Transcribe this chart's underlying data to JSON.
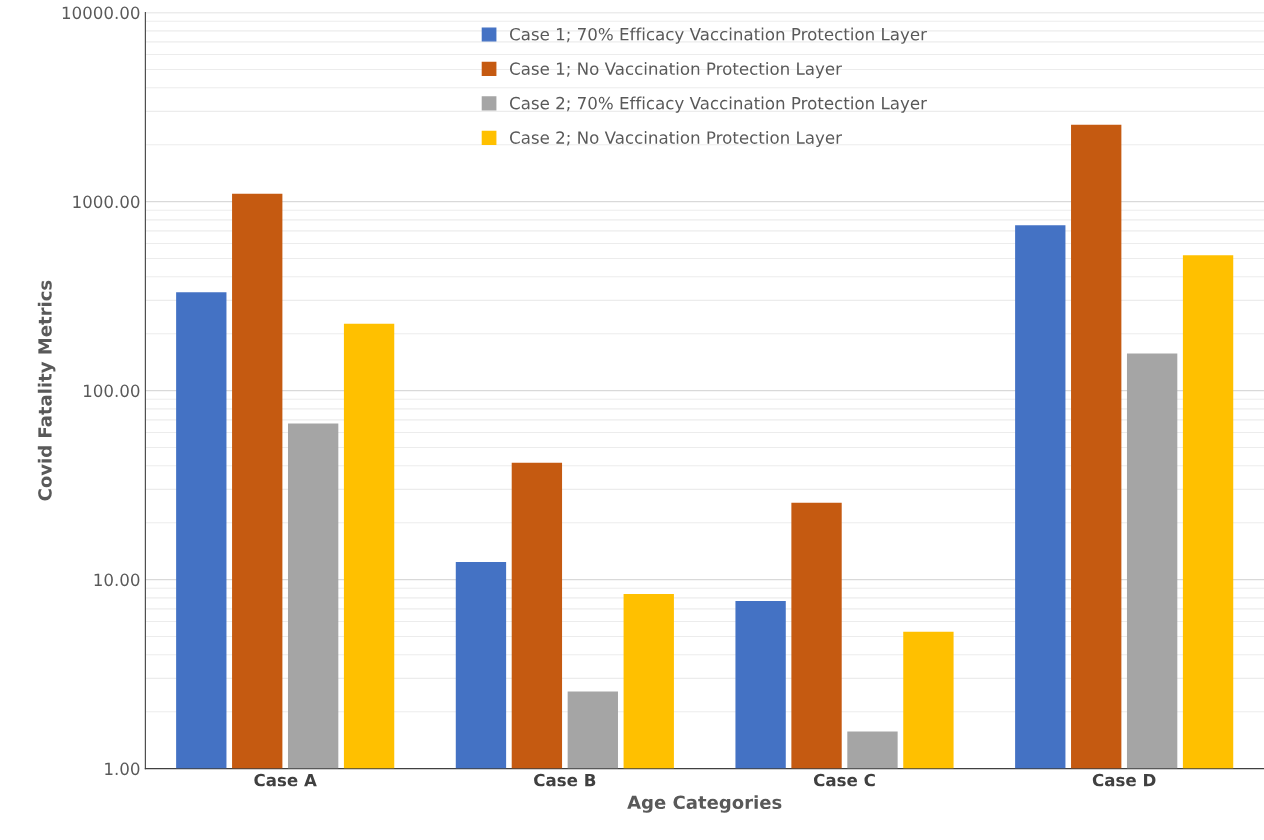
{
  "chart_data": {
    "type": "bar",
    "xlabel": "Age Categories",
    "ylabel": "Covid Fatality Metrics",
    "categories": [
      "Case A",
      "Case B",
      "Case C",
      "Case D"
    ],
    "series": [
      {
        "name": "Case 1; 70% Efficacy Vaccination Protection Layer",
        "color": "#4472c4",
        "values": [
          331,
          12.4,
          7.7,
          750
        ]
      },
      {
        "name": "Case 1; No Vaccination Protection Layer",
        "color": "#c55a11",
        "values": [
          1100,
          41.5,
          25.5,
          2550
        ]
      },
      {
        "name": "Case 2; 70% Efficacy Vaccination Protection Layer",
        "color": "#a5a5a5",
        "values": [
          67,
          2.56,
          1.57,
          157
        ]
      },
      {
        "name": "Case 2; No Vaccination Protection Layer",
        "color": "#ffc000",
        "values": [
          226,
          8.4,
          5.3,
          520
        ]
      }
    ],
    "log": true,
    "ylim": [
      1,
      10000
    ],
    "yticks": [
      {
        "value": 1,
        "label": "1.00"
      },
      {
        "value": 10,
        "label": "10.00"
      },
      {
        "value": 100,
        "label": "100.00"
      },
      {
        "value": 1000,
        "label": "1000.00"
      },
      {
        "value": 10000,
        "label": "10000.00"
      }
    ],
    "grid": "y",
    "legend": "top"
  }
}
